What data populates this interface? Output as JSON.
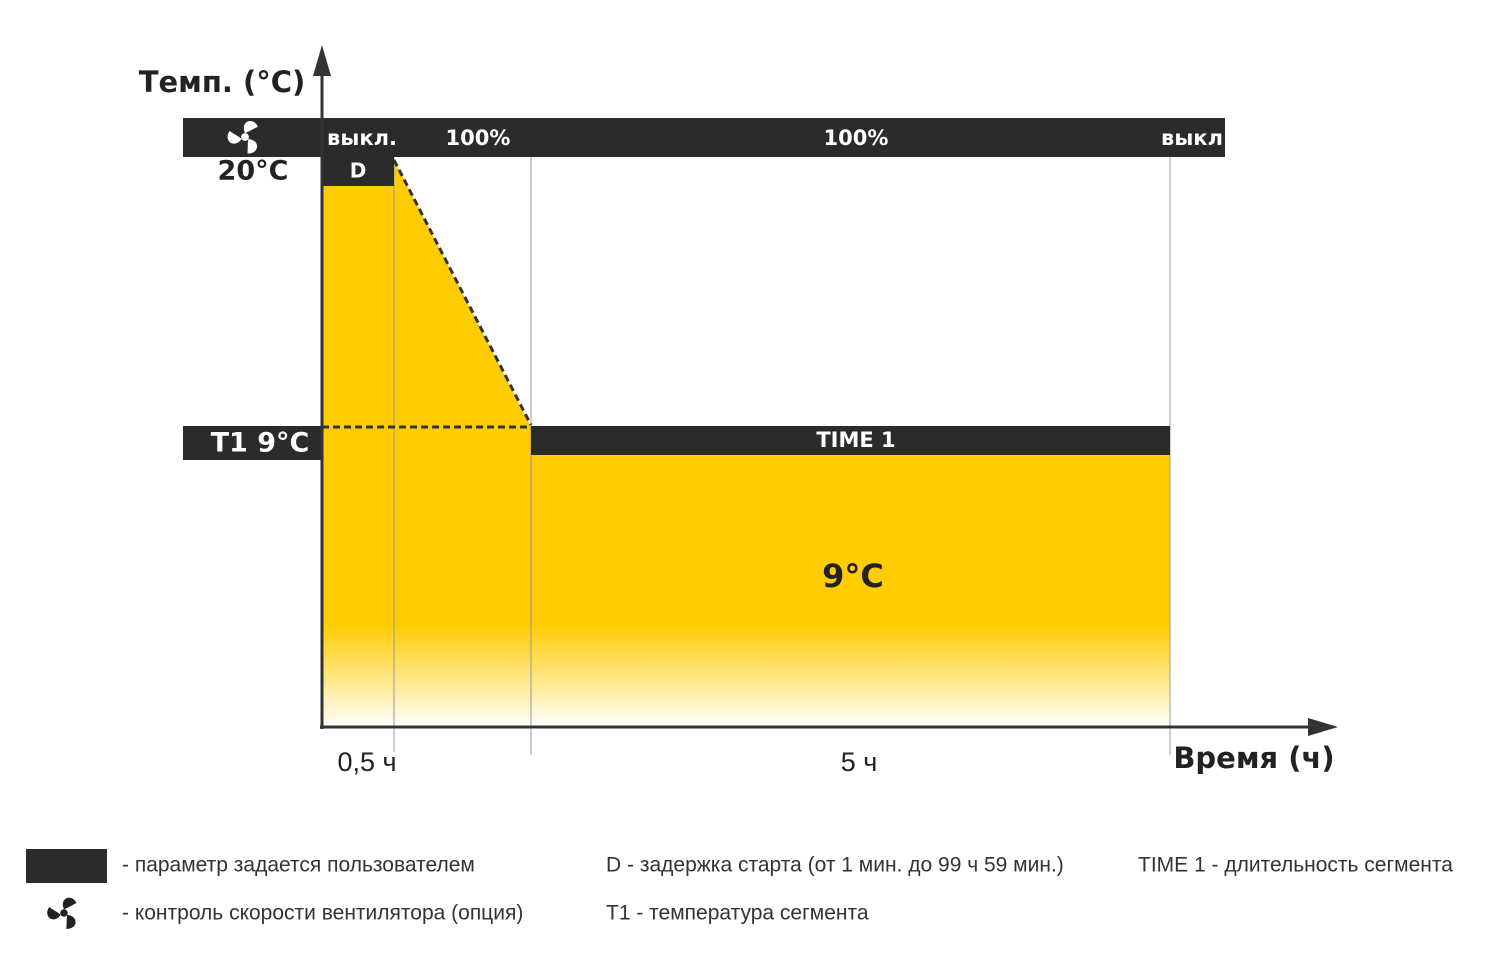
{
  "axes": {
    "y_label": "Темп. (°C)",
    "x_label": "Время (ч)"
  },
  "fan_bar": {
    "labels": [
      "выкл.",
      "100%",
      "100%",
      "выкл"
    ]
  },
  "start_temp": "20°C",
  "delay": "D",
  "segment": {
    "temp_label": "T1 9°C",
    "time_label": "TIME 1",
    "value_label": "9°C"
  },
  "x_ticks": [
    "0,5 ч",
    "5 ч"
  ],
  "legend": {
    "user_param": "- параметр задается пользователем",
    "fan": "- контроль скорости вентилятора (опция)",
    "d": "D - задержка старта (от 1 мин. до 99 ч 59 мин.)",
    "t1": "T1 - температура сегмента",
    "time1": "TIME 1 - длительность сегмента"
  }
}
